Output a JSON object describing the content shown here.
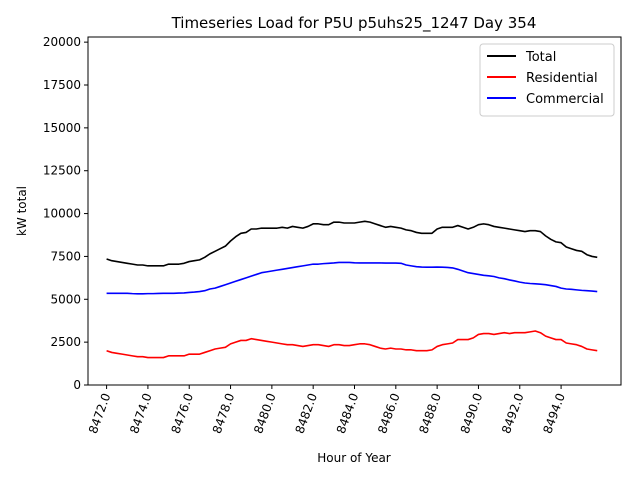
{
  "chart_data": {
    "type": "line",
    "title": "Timeseries Load for P5U p5uhs25_1247  Day 354",
    "xlabel": "Hour of Year",
    "ylabel": "kW total",
    "xlim": [
      8471.1,
      8496.9
    ],
    "ylim": [
      0,
      20300
    ],
    "xticks": [
      8472,
      8474,
      8476,
      8478,
      8480,
      8482,
      8484,
      8486,
      8488,
      8490,
      8492,
      8494
    ],
    "xtick_labels": [
      "8472.0",
      "8474.0",
      "8476.0",
      "8478.0",
      "8480.0",
      "8482.0",
      "8484.0",
      "8486.0",
      "8488.0",
      "8490.0",
      "8492.0",
      "8494.0"
    ],
    "yticks": [
      0,
      2500,
      5000,
      7500,
      10000,
      12500,
      15000,
      17500,
      20000
    ],
    "ytick_labels": [
      "0",
      "2500",
      "5000",
      "7500",
      "10000",
      "12500",
      "15000",
      "17500",
      "20000"
    ],
    "legend_position": "top-right",
    "x": [
      8472.0,
      8472.25,
      8472.5,
      8472.75,
      8473.0,
      8473.25,
      8473.5,
      8473.75,
      8474.0,
      8474.25,
      8474.5,
      8474.75,
      8475.0,
      8475.25,
      8475.5,
      8475.75,
      8476.0,
      8476.25,
      8476.5,
      8476.75,
      8477.0,
      8477.25,
      8477.5,
      8477.75,
      8478.0,
      8478.25,
      8478.5,
      8478.75,
      8479.0,
      8479.25,
      8479.5,
      8479.75,
      8480.0,
      8480.25,
      8480.5,
      8480.75,
      8481.0,
      8481.25,
      8481.5,
      8481.75,
      8482.0,
      8482.25,
      8482.5,
      8482.75,
      8483.0,
      8483.25,
      8483.5,
      8483.75,
      8484.0,
      8484.25,
      8484.5,
      8484.75,
      8485.0,
      8485.25,
      8485.5,
      8485.75,
      8486.0,
      8486.25,
      8486.5,
      8486.75,
      8487.0,
      8487.25,
      8487.5,
      8487.75,
      8488.0,
      8488.25,
      8488.5,
      8488.75,
      8489.0,
      8489.25,
      8489.5,
      8489.75,
      8490.0,
      8490.25,
      8490.5,
      8490.75,
      8491.0,
      8491.25,
      8491.5,
      8491.75,
      8492.0,
      8492.25,
      8492.5,
      8492.75,
      8493.0,
      8493.25,
      8493.5,
      8493.75,
      8494.0,
      8494.25,
      8494.5,
      8494.75,
      8495.0,
      8495.25,
      8495.5,
      8495.75
    ],
    "series": [
      {
        "name": "Total",
        "color": "#000000",
        "values": [
          7350,
          7250,
          7200,
          7150,
          7100,
          7050,
          7000,
          7000,
          6950,
          6950,
          6950,
          6950,
          7050,
          7050,
          7050,
          7100,
          7200,
          7250,
          7300,
          7450,
          7650,
          7800,
          7950,
          8100,
          8400,
          8650,
          8850,
          8900,
          9100,
          9100,
          9150,
          9150,
          9150,
          9150,
          9200,
          9150,
          9250,
          9200,
          9150,
          9250,
          9400,
          9400,
          9350,
          9350,
          9500,
          9500,
          9450,
          9450,
          9450,
          9500,
          9550,
          9500,
          9400,
          9300,
          9200,
          9250,
          9200,
          9150,
          9050,
          9000,
          8900,
          8850,
          8850,
          8850,
          9100,
          9200,
          9200,
          9200,
          9300,
          9200,
          9100,
          9200,
          9350,
          9400,
          9350,
          9250,
          9200,
          9150,
          9100,
          9050,
          9000,
          8950,
          9000,
          9000,
          8950,
          8700,
          8500,
          8350,
          8300,
          8050,
          7950,
          7850,
          7800,
          7600,
          7500,
          7450
        ]
      },
      {
        "name": "Residential",
        "color": "#ff0000",
        "values": [
          2000,
          1900,
          1850,
          1800,
          1750,
          1700,
          1650,
          1650,
          1600,
          1600,
          1600,
          1600,
          1700,
          1700,
          1700,
          1700,
          1800,
          1800,
          1800,
          1900,
          2000,
          2100,
          2150,
          2200,
          2400,
          2500,
          2600,
          2600,
          2700,
          2650,
          2600,
          2550,
          2500,
          2450,
          2400,
          2350,
          2350,
          2300,
          2250,
          2300,
          2350,
          2350,
          2300,
          2250,
          2350,
          2350,
          2300,
          2300,
          2350,
          2400,
          2400,
          2350,
          2250,
          2150,
          2100,
          2150,
          2100,
          2100,
          2050,
          2050,
          2000,
          2000,
          2000,
          2050,
          2250,
          2350,
          2400,
          2450,
          2650,
          2650,
          2650,
          2750,
          2950,
          3000,
          3000,
          2950,
          3000,
          3050,
          3000,
          3050,
          3050,
          3050,
          3100,
          3150,
          3050,
          2850,
          2750,
          2650,
          2650,
          2450,
          2400,
          2350,
          2250,
          2100,
          2050,
          2000
        ]
      },
      {
        "name": "Commercial",
        "color": "#0000ff",
        "values": [
          5350,
          5350,
          5350,
          5350,
          5350,
          5330,
          5320,
          5320,
          5330,
          5330,
          5340,
          5350,
          5350,
          5350,
          5360,
          5370,
          5400,
          5420,
          5450,
          5500,
          5600,
          5650,
          5750,
          5850,
          5950,
          6050,
          6150,
          6250,
          6350,
          6450,
          6550,
          6600,
          6650,
          6700,
          6750,
          6800,
          6850,
          6900,
          6950,
          7000,
          7050,
          7050,
          7080,
          7100,
          7120,
          7150,
          7150,
          7150,
          7130,
          7120,
          7120,
          7120,
          7120,
          7120,
          7110,
          7110,
          7110,
          7100,
          7000,
          6950,
          6900,
          6880,
          6870,
          6870,
          6880,
          6870,
          6860,
          6830,
          6750,
          6650,
          6550,
          6500,
          6450,
          6400,
          6370,
          6330,
          6250,
          6200,
          6130,
          6070,
          6000,
          5950,
          5920,
          5900,
          5880,
          5850,
          5800,
          5750,
          5650,
          5600,
          5580,
          5550,
          5520,
          5500,
          5480,
          5450
        ]
      }
    ]
  }
}
